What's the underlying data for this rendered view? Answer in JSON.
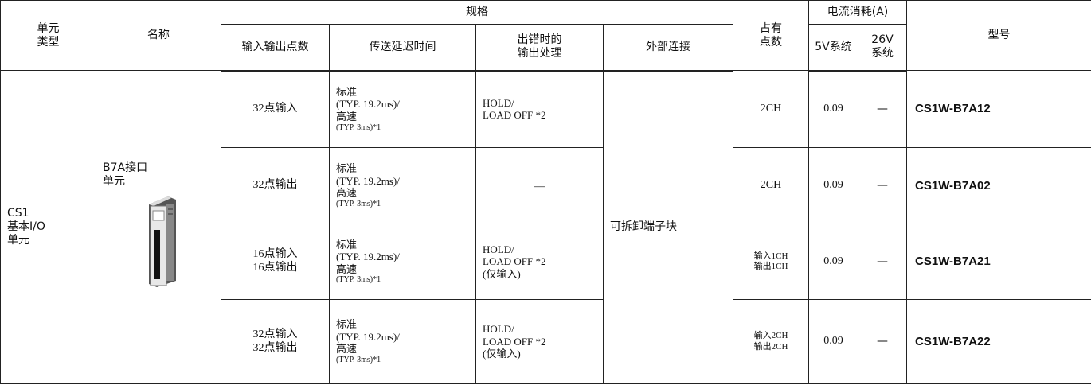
{
  "table": {
    "header": {
      "unit_type": "单元\n类型",
      "name": "名称",
      "spec": "规格",
      "io_points": "输入输出点数",
      "delay": "传送延迟时间",
      "error_output": "出错时的\n输出处理",
      "external": "外部连接",
      "occupied": "占有\n点数",
      "current": "电流消耗(A)",
      "v5": "5V系统",
      "v26": "26V\n系统",
      "model": "型号"
    },
    "unit_type": "CS1\n基本I/O\n单元",
    "name": "B7A接口\n单元",
    "external": "可拆卸端子块",
    "rows": [
      {
        "io_points": "32点输入",
        "delay": [
          "标准",
          "(TYP. 19.2ms)/",
          "高速",
          "(TYP. 3ms)*1"
        ],
        "error_output": "HOLD/\nLOAD OFF *2",
        "occupied": "2CH",
        "v5": 0.09,
        "v26": "—",
        "model": "CS1W-B7A12"
      },
      {
        "io_points": "32点输出",
        "delay": [
          "标准",
          "(TYP. 19.2ms)/",
          "高速",
          "(TYP. 3ms)*1"
        ],
        "error_output": "—",
        "occupied": "2CH",
        "v5": 0.09,
        "v26": "—",
        "model": "CS1W-B7A02"
      },
      {
        "io_points": "16点输入\n16点输出",
        "delay": [
          "标准",
          "(TYP. 19.2ms)/",
          "高速",
          "(TYP. 3ms)*1"
        ],
        "error_output": "HOLD/\nLOAD OFF *2\n(仅输入)",
        "occupied": "输入1CH\n输出1CH",
        "v5": 0.09,
        "v26": "—",
        "model": "CS1W-B7A21"
      },
      {
        "io_points": "32点输入\n32点输出",
        "delay": [
          "标准",
          "(TYP. 19.2ms)/",
          "高速",
          "(TYP. 3ms)*1"
        ],
        "error_output": "HOLD/\nLOAD OFF *2\n(仅输入)",
        "occupied": "输入2CH\n输出2CH",
        "v5": 0.09,
        "v26": "—",
        "model": "CS1W-B7A22"
      }
    ]
  }
}
